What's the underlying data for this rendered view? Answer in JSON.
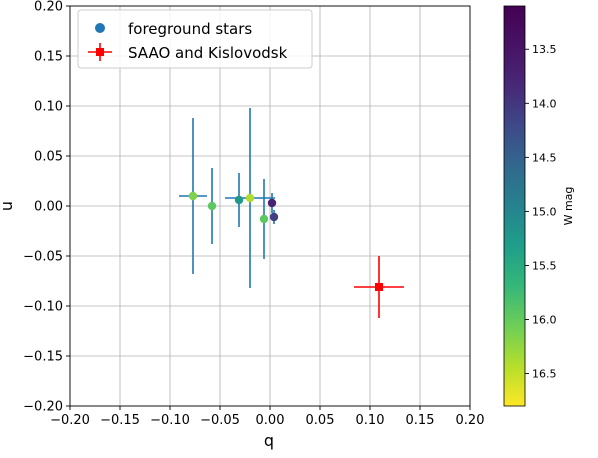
{
  "chart_data": {
    "type": "scatter",
    "xlabel": "q",
    "ylabel": "u",
    "xlim": [
      -0.2,
      0.2
    ],
    "ylim": [
      -0.2,
      0.2
    ],
    "xticks": [
      -0.2,
      -0.15,
      -0.1,
      -0.05,
      0.0,
      0.05,
      0.1,
      0.15,
      0.2
    ],
    "xtick_labels": [
      "−0.20",
      "−0.15",
      "−0.10",
      "−0.05",
      "0.00",
      "0.05",
      "0.10",
      "0.15",
      "0.20"
    ],
    "yticks": [
      -0.2,
      -0.15,
      -0.1,
      -0.05,
      0.0,
      0.05,
      0.1,
      0.15,
      0.2
    ],
    "ytick_labels": [
      "−0.20",
      "−0.15",
      "−0.10",
      "−0.05",
      "0.00",
      "0.05",
      "0.10",
      "0.15",
      "0.20"
    ],
    "grid": true,
    "legend": {
      "position": "top-left",
      "entries": [
        {
          "label": "foreground stars",
          "marker": "circle",
          "color": "#1f77b4"
        },
        {
          "label": "SAAO and Kislovodsk",
          "marker": "square-errorbar",
          "color": "#ff0000"
        }
      ]
    },
    "series": [
      {
        "name": "foreground stars",
        "points": [
          {
            "q": -0.077,
            "u": 0.01,
            "q_err": 0.014,
            "u_err": 0.078,
            "wmag": 16.15
          },
          {
            "q": -0.058,
            "u": 0.0,
            "q_err": 0.003,
            "u_err": 0.038,
            "wmag": 15.95
          },
          {
            "q": -0.031,
            "u": 0.006,
            "q_err": 0.001,
            "u_err": 0.027,
            "wmag": 15.25
          },
          {
            "q": -0.02,
            "u": 0.008,
            "q_err": 0.025,
            "u_err": 0.09,
            "wmag": 16.4
          },
          {
            "q": -0.006,
            "u": -0.013,
            "q_err": 0.001,
            "u_err": 0.04,
            "wmag": 15.95
          },
          {
            "q": 0.002,
            "u": 0.003,
            "q_err": 0.002,
            "u_err": 0.01,
            "wmag": 13.75
          },
          {
            "q": 0.004,
            "u": -0.011,
            "q_err": 0.001,
            "u_err": 0.007,
            "wmag": 14.1
          }
        ]
      },
      {
        "name": "SAAO and Kislovodsk",
        "points": [
          {
            "q": 0.109,
            "u": -0.081,
            "q_err": 0.025,
            "u_err": 0.031
          }
        ],
        "color": "#ff0000"
      }
    ],
    "colorbar": {
      "label": "W mag",
      "colormap": "viridis",
      "range": [
        13.1,
        16.8
      ],
      "inverted": true,
      "ticks": [
        13.5,
        14.0,
        14.5,
        15.0,
        15.5,
        16.0,
        16.5
      ],
      "tick_labels": [
        "13.5",
        "14.0",
        "14.5",
        "15.0",
        "15.5",
        "16.0",
        "16.5"
      ]
    },
    "colors": {
      "errorbar": "#1f77b4",
      "highlight": "#ff0000",
      "grid": "#b0b0b0"
    }
  }
}
